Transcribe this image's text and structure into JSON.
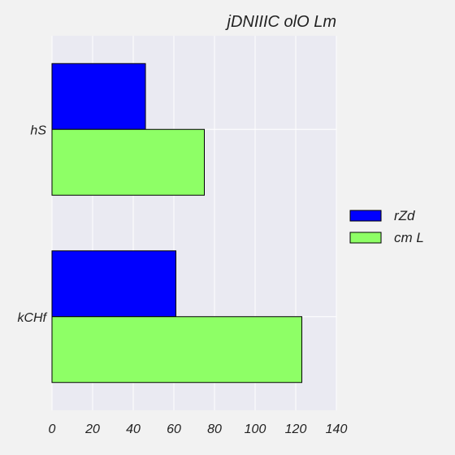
{
  "chart_data": {
    "type": "bar",
    "orientation": "horizontal",
    "title": "jDNIIIC olO Lm",
    "xlabel": "",
    "ylabel": "",
    "categories": [
      "hS",
      "kCHf"
    ],
    "series": [
      {
        "name": "rZd",
        "values": [
          46,
          61
        ],
        "color": "#0000ff"
      },
      {
        "name": "cm L",
        "values": [
          75,
          123
        ],
        "color": "#8eff66"
      }
    ],
    "xlim": [
      0,
      140
    ],
    "xticks": [
      "0",
      "20",
      "40",
      "60",
      "80",
      "100",
      "120",
      "140"
    ],
    "grid": true,
    "legend": "right",
    "colors": {
      "plot_background": "#eaeaf2",
      "figure_background": "#f2f2f2",
      "grid": "#ffffff"
    }
  }
}
